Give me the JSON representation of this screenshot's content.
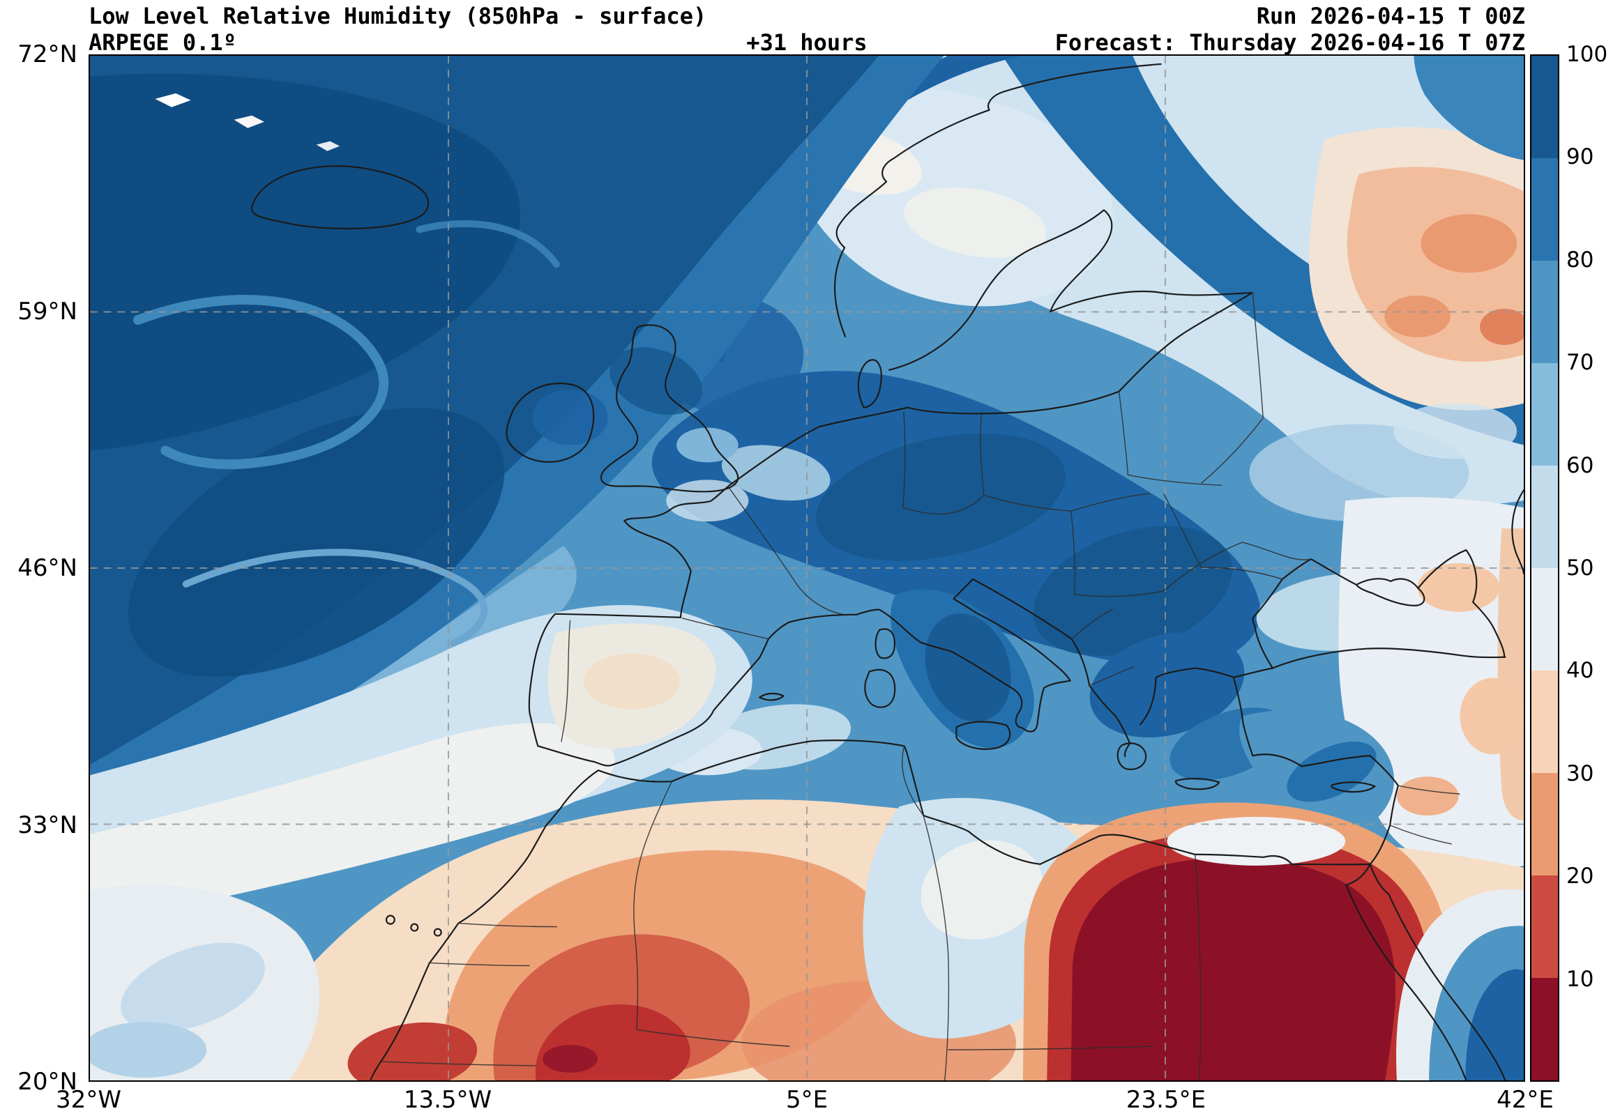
{
  "header": {
    "title": "Low Level Relative Humidity (850hPa - surface)",
    "model": "ARPEGE 0.1º",
    "lead_time": "+31 hours",
    "run": "Run 2026-04-15 T 00Z",
    "forecast": "Forecast: Thursday 2026-04-16 T 07Z"
  },
  "axes": {
    "x_ticks": [
      {
        "label": "32°W",
        "pos": 0
      },
      {
        "label": "13.5°W",
        "pos": 0.25
      },
      {
        "label": "5°E",
        "pos": 0.5
      },
      {
        "label": "23.5°E",
        "pos": 0.75
      },
      {
        "label": "42°E",
        "pos": 1
      }
    ],
    "y_ticks": [
      {
        "label": "72°N",
        "pos": 0
      },
      {
        "label": "59°N",
        "pos": 0.25
      },
      {
        "label": "46°N",
        "pos": 0.5
      },
      {
        "label": "33°N",
        "pos": 0.75
      },
      {
        "label": "20°N",
        "pos": 1
      }
    ],
    "grid_color": "#979797"
  },
  "colorbar": {
    "tick_labels": [
      "100",
      "90",
      "80",
      "70",
      "60",
      "50",
      "40",
      "30",
      "20",
      "10"
    ],
    "segments": [
      {
        "range": "90-100",
        "color": "#16588f"
      },
      {
        "range": "80-90",
        "color": "#2a75b0"
      },
      {
        "range": "70-80",
        "color": "#4f96c5"
      },
      {
        "range": "60-70",
        "color": "#85bcdb"
      },
      {
        "range": "50-60",
        "color": "#c2dcec"
      },
      {
        "range": "40-50",
        "color": "#e9eef2"
      },
      {
        "range": "30-40",
        "color": "#f6d3ba"
      },
      {
        "range": "20-30",
        "color": "#eb9b72"
      },
      {
        "range": "10-20",
        "color": "#cc4c42"
      },
      {
        "range": "0-10",
        "color": "#8c1127"
      }
    ]
  }
}
